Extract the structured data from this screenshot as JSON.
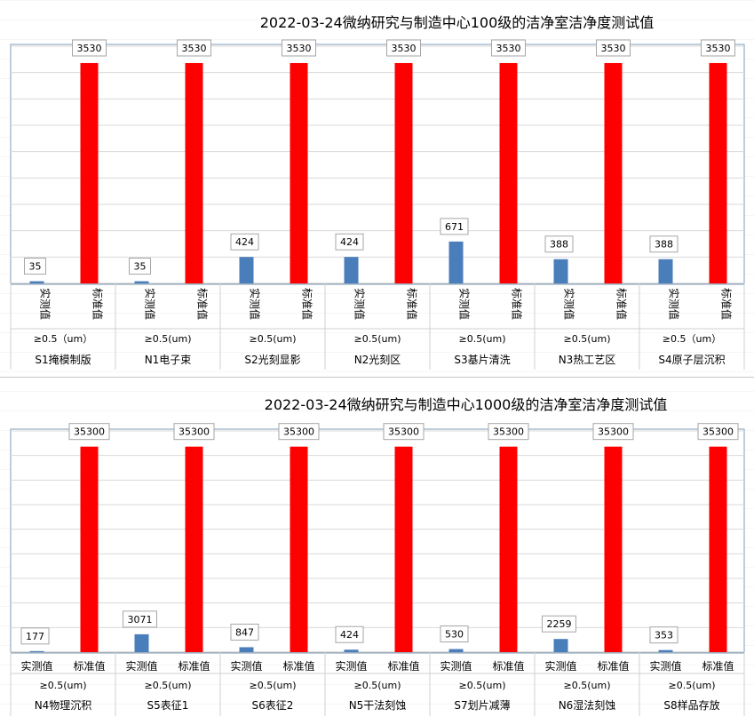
{
  "chart_data": [
    {
      "type": "bar",
      "title": "2022-03-24微纳研究与制造中心100级的洁净室洁净度测试值",
      "ylim": [
        0,
        3800
      ],
      "grid": true,
      "legend": "none",
      "category_label_orientation": "vertical",
      "group_labels": [
        {
          "size": "≥0.5（um）",
          "name": "S1掩模制版"
        },
        {
          "size": "≥0.5(um)",
          "name": "N1电子束"
        },
        {
          "size": "≥0.5(um)",
          "name": "S2光刻显影"
        },
        {
          "size": "≥0.5(um)",
          "name": "N2光刻区"
        },
        {
          "size": "≥0.5(um)",
          "name": "S3基片清洗"
        },
        {
          "size": "≥0.5(um)",
          "name": "N3热工艺区"
        },
        {
          "size": "≥0.5（um）",
          "name": "S4原子层沉积"
        }
      ],
      "bar_labels": [
        "实测值",
        "标准值"
      ],
      "series": [
        {
          "name": "实测值",
          "color": "#4a7ebb",
          "values": [
            35,
            35,
            424,
            424,
            671,
            388,
            388
          ]
        },
        {
          "name": "标准值",
          "color": "#ff0000",
          "values": [
            3530,
            3530,
            3530,
            3530,
            3530,
            3530,
            3530
          ]
        }
      ]
    },
    {
      "type": "bar",
      "title": "2022-03-24微纳研究与制造中心1000级的洁净室洁净度测试值",
      "ylim": [
        0,
        38000
      ],
      "grid": true,
      "legend": "none",
      "category_label_orientation": "horizontal",
      "group_labels": [
        {
          "size": "≥0.5(um)",
          "name": "N4物理沉积"
        },
        {
          "size": "≥0.5(um)",
          "name": "S5表征1"
        },
        {
          "size": "≥0.5(um)",
          "name": "S6表征2"
        },
        {
          "size": "≥0.5(um)",
          "name": "N5干法刻蚀"
        },
        {
          "size": "≥0.5(um)",
          "name": "S7划片减薄"
        },
        {
          "size": "≥0.5(um)",
          "name": "N6湿法刻蚀"
        },
        {
          "size": "≥0.5(um)",
          "name": "S8样品存放"
        }
      ],
      "bar_labels": [
        "实测值",
        "标准值"
      ],
      "series": [
        {
          "name": "实测值",
          "color": "#4a7ebb",
          "values": [
            177,
            3071,
            847,
            424,
            530,
            2259,
            353
          ]
        },
        {
          "name": "标准值",
          "color": "#ff0000",
          "values": [
            35300,
            35300,
            35300,
            35300,
            35300,
            35300,
            35300
          ]
        }
      ]
    }
  ]
}
